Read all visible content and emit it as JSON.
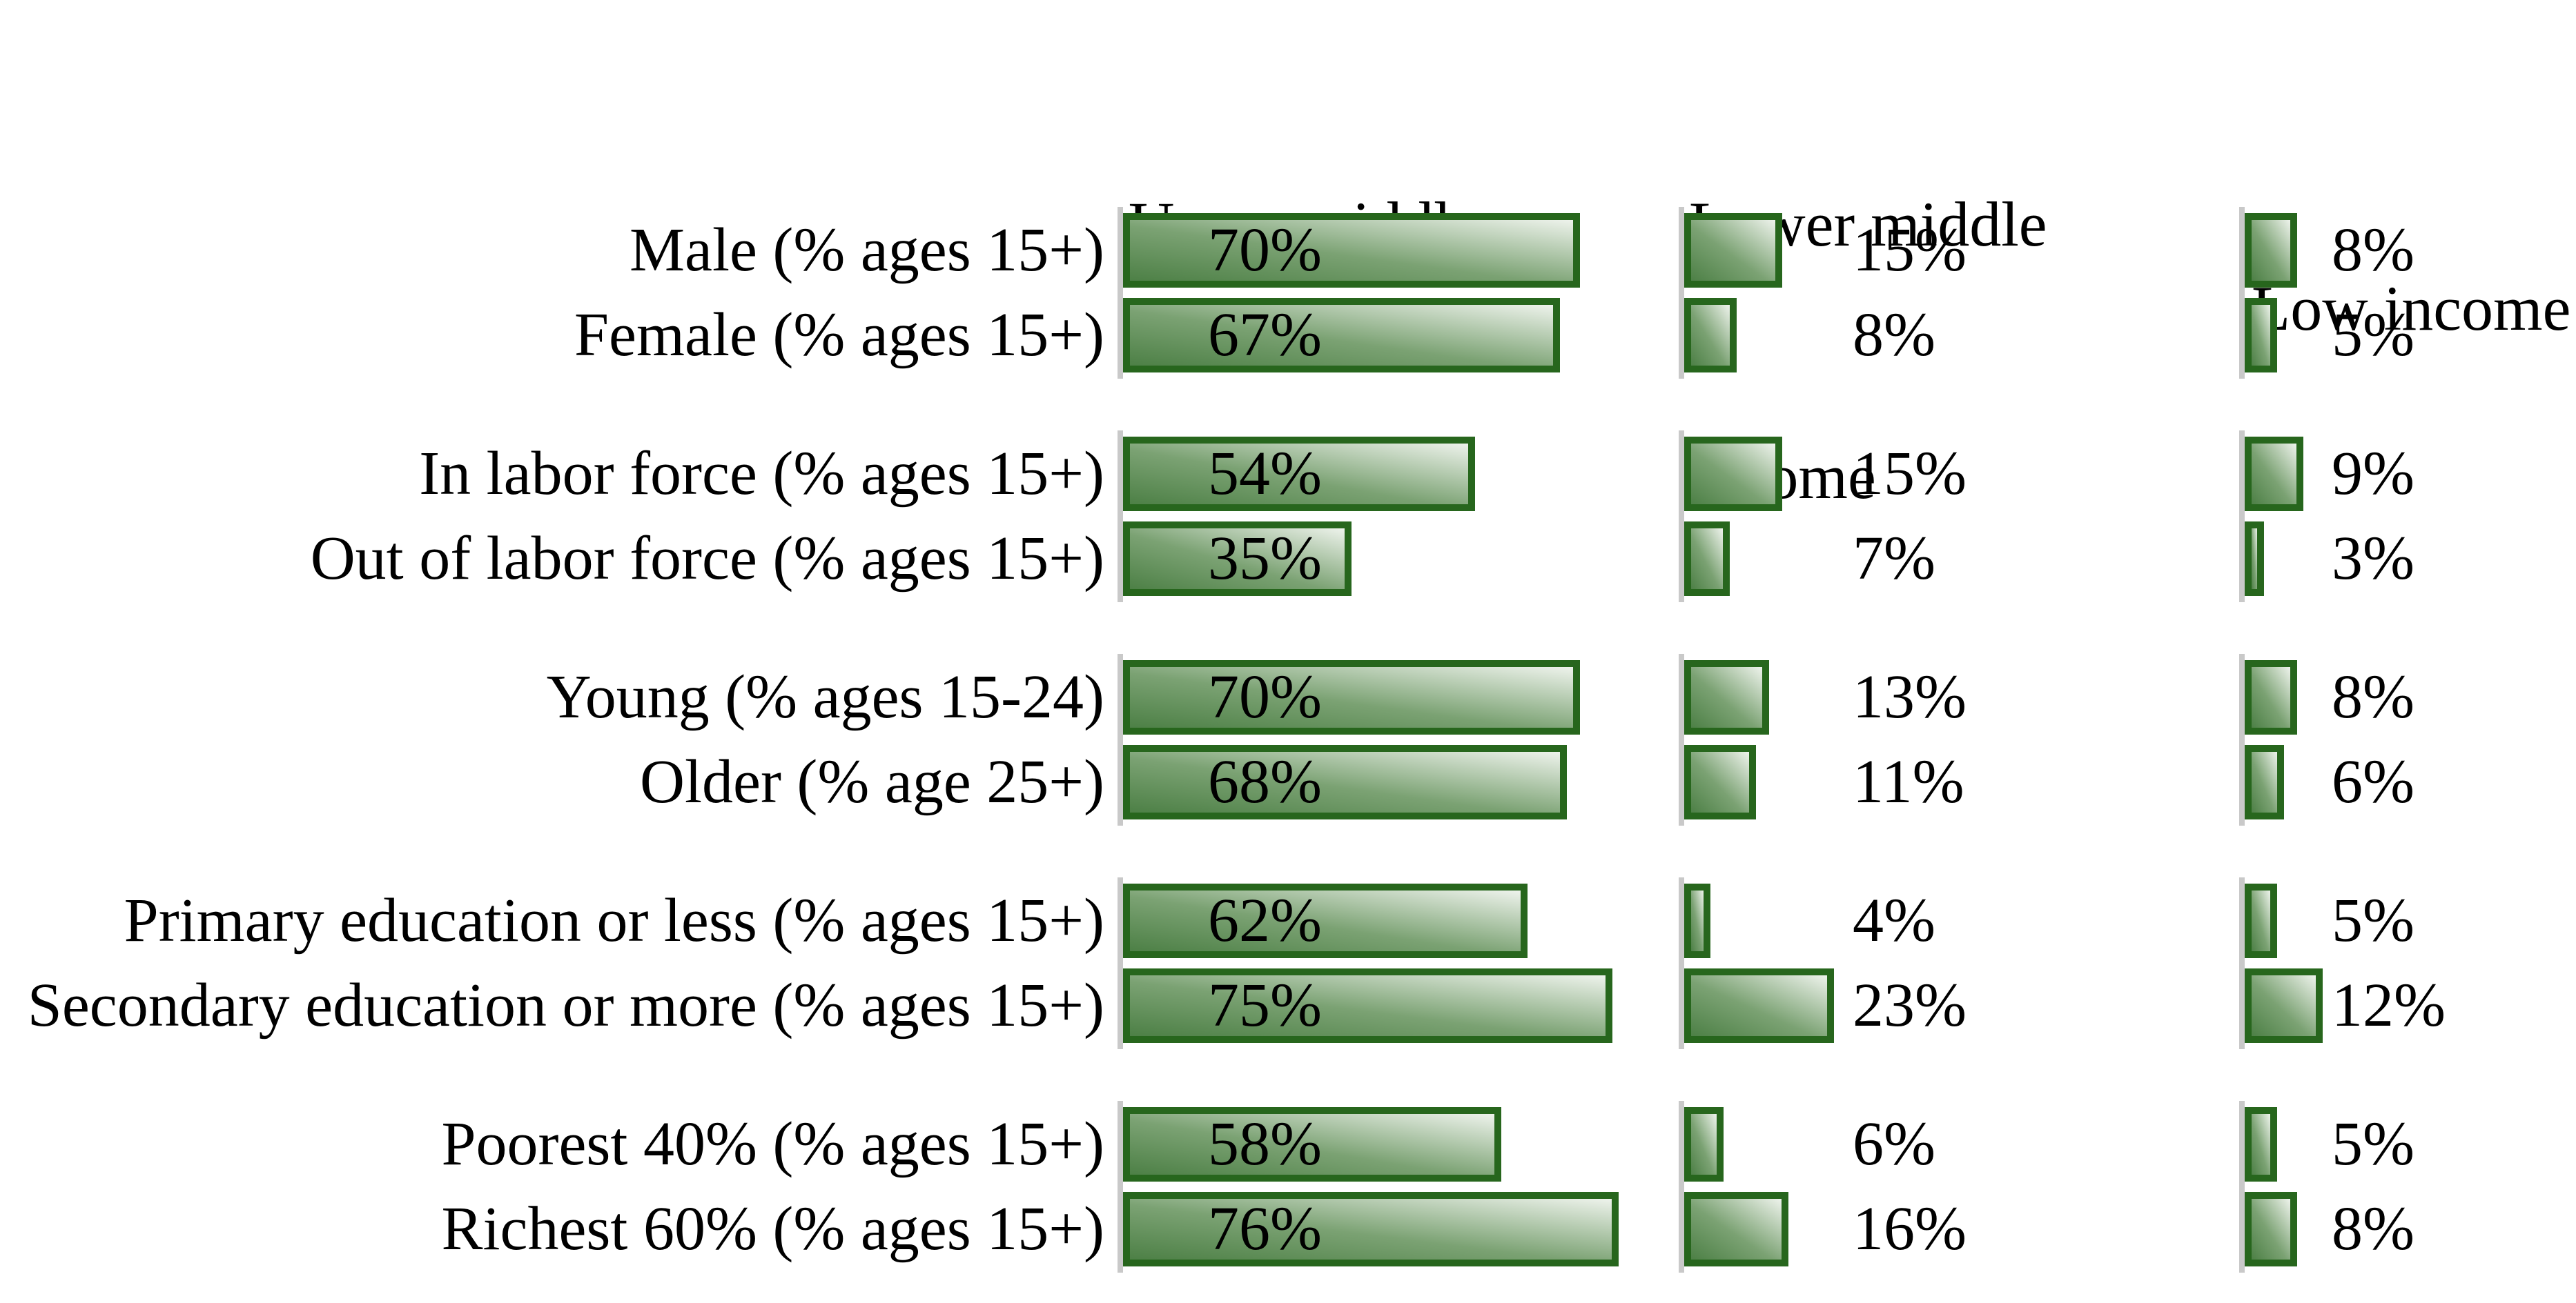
{
  "colors": {
    "bar_border": "#27661d",
    "bar_fill_dark": "#4d8046",
    "bar_fill_light": "#eef3ec",
    "axis_line": "#c9c9c9",
    "text": "#000000",
    "background": "#ffffff"
  },
  "chart_data": {
    "type": "bar",
    "orientation": "horizontal",
    "unit": "%",
    "xlim": [
      0,
      100
    ],
    "gridlines": false,
    "legend_position": "column-headers-top",
    "column_headers": [
      {
        "line1": "Upper middle",
        "line2": "income"
      },
      {
        "line1": "Lower middle",
        "line2": "income"
      },
      {
        "line1": "Low income",
        "line2": ""
      }
    ],
    "categories": [
      "Male (% ages 15+)",
      "Female (% ages 15+)",
      "In labor force (% ages 15+)",
      "Out of labor force (% ages 15+)",
      "Young (% ages 15-24)",
      "Older (% age 25+)",
      "Primary education or less (% ages 15+)",
      "Secondary education or more (% ages 15+)",
      "Poorest 40% (% ages 15+)",
      "Richest 60% (% ages 15+)"
    ],
    "groups": [
      [
        0,
        1
      ],
      [
        2,
        3
      ],
      [
        4,
        5
      ],
      [
        6,
        7
      ],
      [
        8,
        9
      ]
    ],
    "series": [
      {
        "name": "Upper middle income",
        "values": [
          70,
          67,
          54,
          35,
          70,
          68,
          62,
          75,
          58,
          76
        ],
        "labels": [
          "70%",
          "67%",
          "54%",
          "35%",
          "70%",
          "68%",
          "62%",
          "75%",
          "58%",
          "76%"
        ],
        "value_label_position": "inside-bar-left"
      },
      {
        "name": "Lower middle income",
        "values": [
          15,
          8,
          15,
          7,
          13,
          11,
          4,
          23,
          6,
          16
        ],
        "labels": [
          "15%",
          "8%",
          "15%",
          "7%",
          "13%",
          "11%",
          "4%",
          "23%",
          "6%",
          "16%"
        ],
        "value_label_position": "outside-right"
      },
      {
        "name": "Low income",
        "values": [
          8,
          5,
          9,
          3,
          8,
          6,
          5,
          12,
          5,
          8
        ],
        "labels": [
          "8%",
          "5%",
          "9%",
          "3%",
          "8%",
          "6%",
          "5%",
          "12%",
          "5%",
          "8%"
        ],
        "value_label_position": "outside-right"
      }
    ]
  }
}
